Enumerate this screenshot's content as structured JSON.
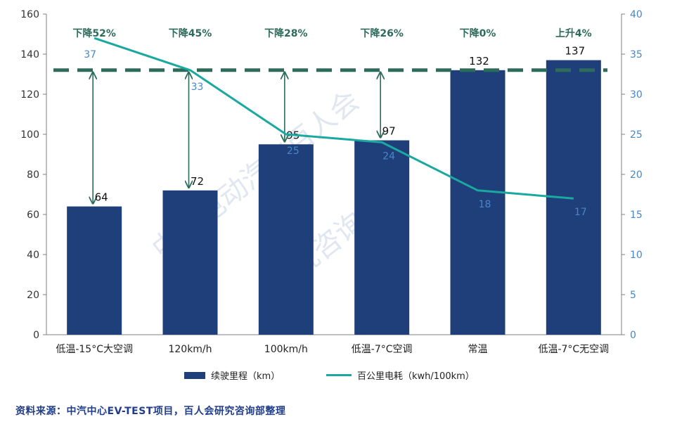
{
  "chart_data": {
    "type": "bar",
    "categories": [
      "低温-15°C大空调",
      "120km/h",
      "100km/h",
      "低温-7°C空调",
      "常温",
      "低温-7°C无空调"
    ],
    "series": [
      {
        "name": "续驶里程（km）",
        "type": "bar",
        "axis": "left",
        "values": [
          64,
          72,
          95,
          97,
          132,
          137
        ]
      },
      {
        "name": "百公里电耗（kwh/100km）",
        "type": "line",
        "axis": "right",
        "values": [
          37,
          33,
          25,
          24,
          18,
          17
        ]
      }
    ],
    "annotations": [
      "下降52%",
      "下降45%",
      "下降28%",
      "下降26%",
      "下降0%",
      "上升4%"
    ],
    "reference_line": {
      "axis": "left",
      "value": 132
    },
    "y_left": {
      "min": 0,
      "max": 160,
      "ticks": [
        0,
        20,
        40,
        60,
        80,
        100,
        120,
        140,
        160
      ]
    },
    "y_right": {
      "min": 0,
      "max": 40,
      "ticks": [
        0,
        5,
        10,
        15,
        20,
        25,
        30,
        35,
        40
      ]
    },
    "grid": false,
    "legend_position": "bottom",
    "colors": {
      "bar": "#1f3f7a",
      "line": "#1aa8a0",
      "reference": "#2d6b5a",
      "annotation": "#2d6b5a",
      "right_axis": "#4a86c5",
      "arrow": "#2d6b5a"
    }
  },
  "watermark": "中国电动汽车百人会 研究咨询部",
  "source": "资料来源：中汽中心EV-TEST项目，百人会研究咨询部整理"
}
